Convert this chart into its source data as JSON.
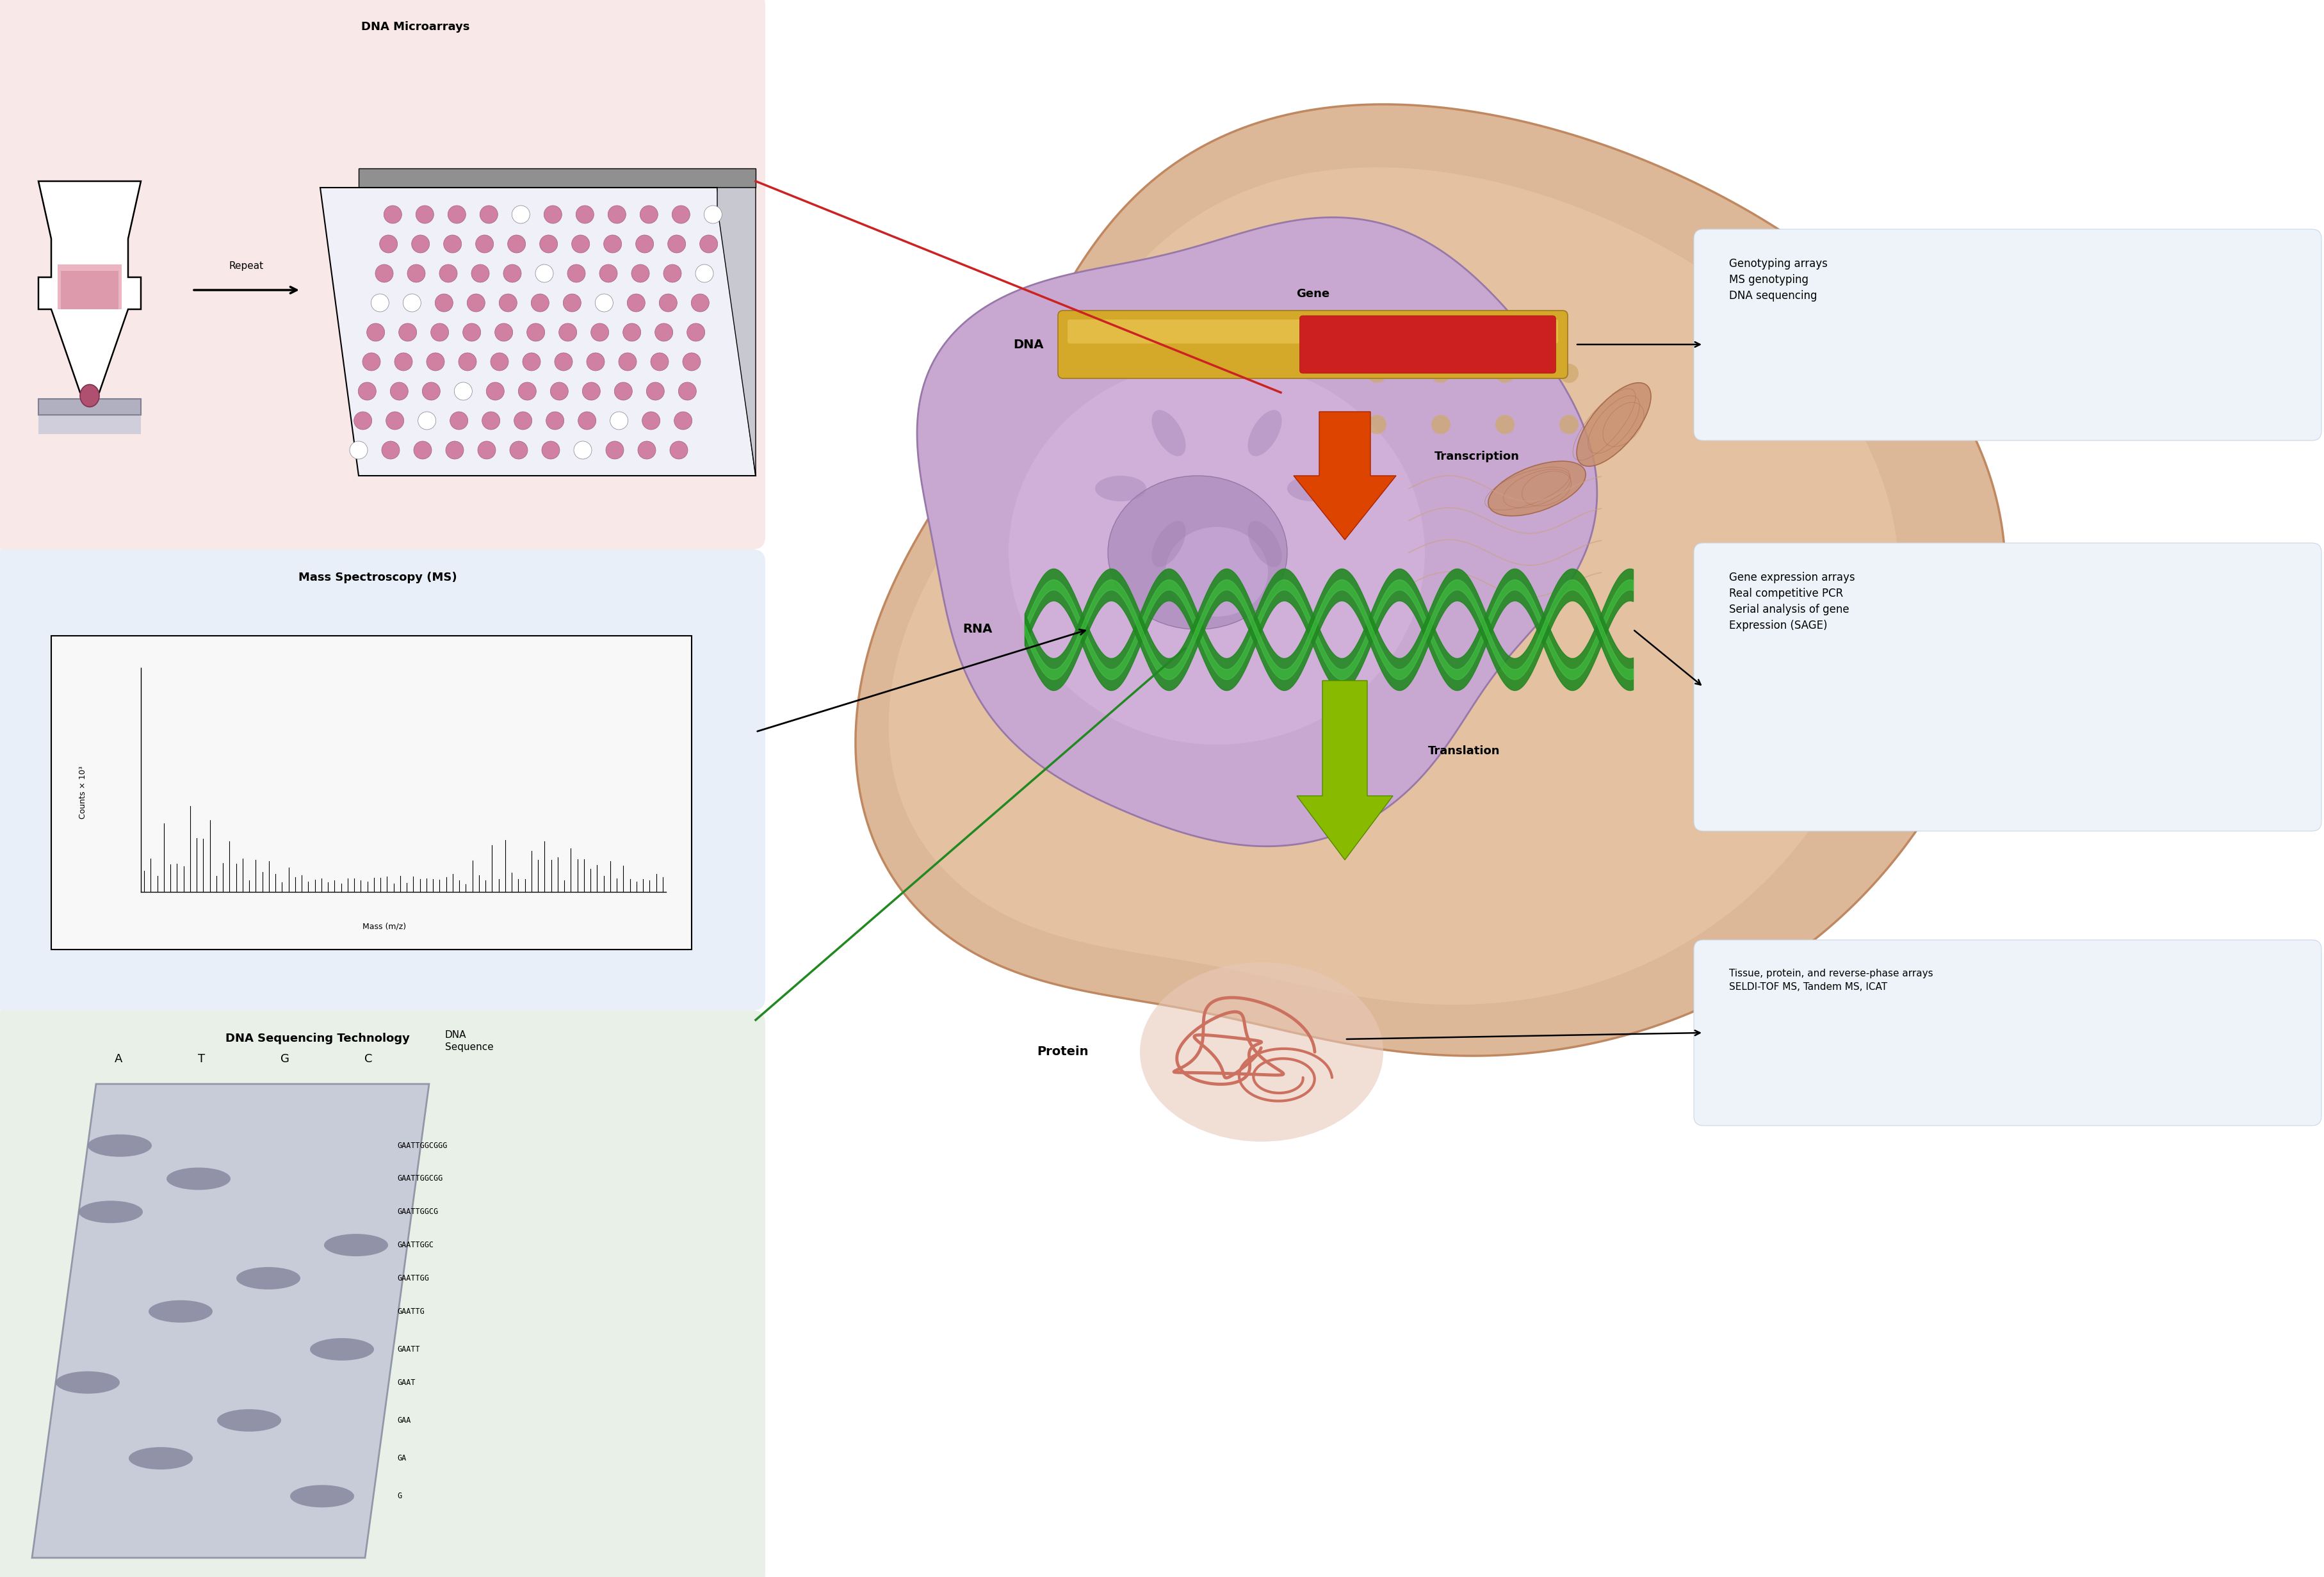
{
  "fig_width": 36.3,
  "fig_height": 24.63,
  "bg_color": "#ffffff",
  "panel1_bg": "#f8e8e8",
  "panel2_bg": "#e8eff8",
  "panel3_bg": "#e8f0e8",
  "panel1_title": "DNA Microarrays",
  "panel2_title": "Mass Spectroscopy (MS)",
  "panel3_title": "DNA Sequencing Technology",
  "right_box1_text": "Genotyping arrays\nMS genotyping\nDNA sequencing",
  "right_box2_text": "Gene expression arrays\nReal competitive PCR\nSerial analysis of gene\nExpression (SAGE)",
  "right_box3_text": "Tissue, protein, and reverse-phase arrays\nSELDI-TOF MS, Tandem MS, ICAT",
  "right_box_bg": "#edf3f8",
  "right_box_edge": "#c8d8e8",
  "dna_label": "DNA",
  "rna_label": "RNA",
  "protein_label": "Protein",
  "gene_label": "Gene",
  "transcription_label": "Transcription",
  "translation_label": "Translation",
  "repeat_label": "Repeat",
  "ms_ylabel": "Counts × 10³",
  "ms_xlabel": "Mass (m/z)",
  "seq_col_labels": [
    "A",
    "T",
    "G",
    "C"
  ],
  "seq_dna_label": "DNA\nSequence",
  "seq_sequences": [
    "GAATTGGCGGG",
    "GAATTGGCGG",
    "GAATTGGCG",
    "GAATTGGC",
    "GAATTGG",
    "GAATTG",
    "GAATT",
    "GAAT",
    "GAA",
    "GA",
    "G"
  ],
  "cell_color": "#ddb898",
  "cell_edge": "#c09070",
  "nucleus_color": "#c8a8d0",
  "nucleus_edge": "#9878a8",
  "gene_gold": "#d4a020",
  "gene_red": "#cc2020",
  "trans_arrow_color": "#cc4400",
  "transl_arrow_color": "#88bb00",
  "rna_color": "#228822",
  "protein_color": "#cc7060",
  "line_red": "#cc2222",
  "line_green": "#228822"
}
